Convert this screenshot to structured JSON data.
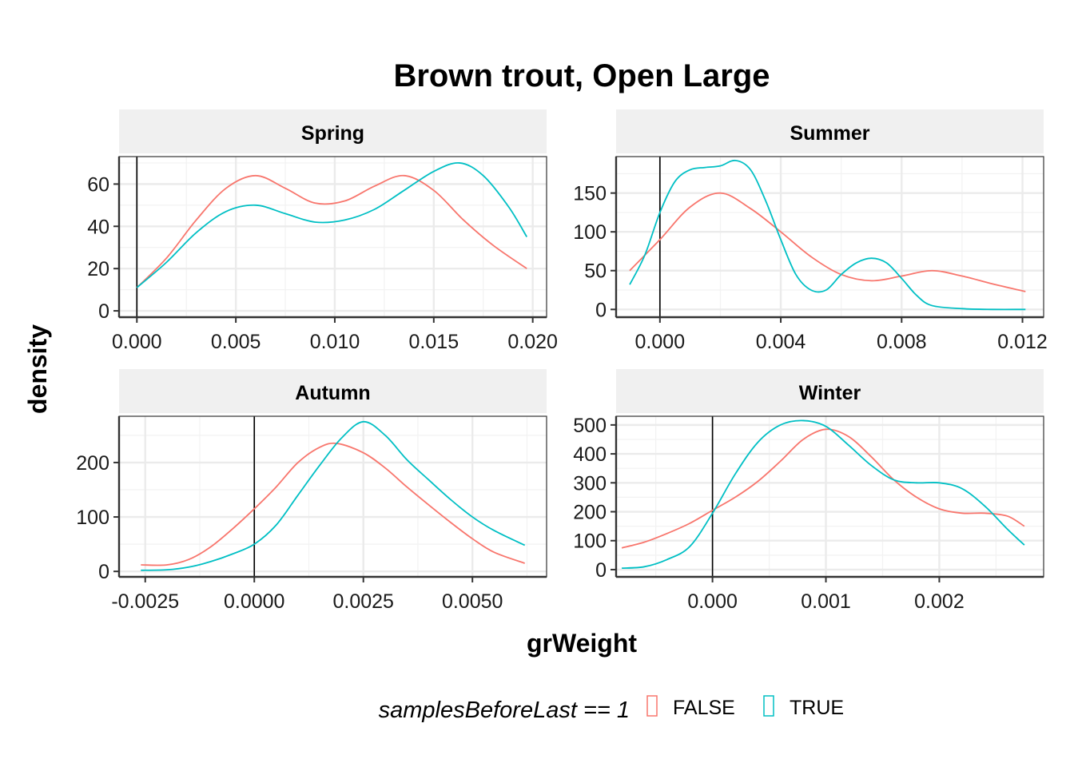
{
  "chart_data": {
    "type": "line",
    "title": "Brown trout, Open Large",
    "xlabel": "grWeight",
    "ylabel": "density",
    "legend": {
      "title": "samplesBeforeLast == 1",
      "position": "bottom",
      "entries": [
        {
          "label": "FALSE",
          "color": "#F8766D"
        },
        {
          "label": "TRUE",
          "color": "#00BFC4"
        }
      ]
    },
    "facets": [
      {
        "name": "Spring",
        "xlim": [
          -0.0009,
          0.0207
        ],
        "ylim": [
          -3,
          73
        ],
        "xticks": [
          0.0,
          0.005,
          0.01,
          0.015,
          0.02
        ],
        "xtick_labels": [
          "0.000",
          "0.005",
          "0.010",
          "0.015",
          "0.020"
        ],
        "yticks": [
          0,
          20,
          40,
          60
        ],
        "ytick_labels": [
          "0",
          "20",
          "40",
          "60"
        ],
        "vline": 0,
        "series": [
          {
            "name": "FALSE",
            "color": "#F8766D",
            "x": [
              0.0,
              0.0015,
              0.003,
              0.0045,
              0.006,
              0.0075,
              0.009,
              0.0105,
              0.012,
              0.0135,
              0.015,
              0.0165,
              0.018,
              0.0197
            ],
            "y": [
              11,
              25,
              43,
              58,
              64,
              58,
              51,
              52,
              59,
              64,
              57,
              43,
              31,
              20
            ]
          },
          {
            "name": "TRUE",
            "color": "#00BFC4",
            "x": [
              0.0,
              0.0015,
              0.003,
              0.0045,
              0.006,
              0.0075,
              0.009,
              0.0105,
              0.012,
              0.0135,
              0.015,
              0.0163,
              0.0175,
              0.0188,
              0.0197
            ],
            "y": [
              11,
              23,
              37,
              47,
              50,
              46,
              42,
              43,
              48,
              57,
              66,
              70,
              64,
              49,
              35
            ]
          }
        ]
      },
      {
        "name": "Summer",
        "xlim": [
          -0.00145,
          0.0127
        ],
        "ylim": [
          -10,
          197
        ],
        "xticks": [
          0.0,
          0.004,
          0.008,
          0.012
        ],
        "xtick_labels": [
          "0.000",
          "0.004",
          "0.008",
          "0.012"
        ],
        "yticks": [
          0,
          50,
          100,
          150
        ],
        "ytick_labels": [
          "0",
          "50",
          "100",
          "150"
        ],
        "vline": 0,
        "series": [
          {
            "name": "FALSE",
            "color": "#F8766D",
            "x": [
              -0.001,
              0.0,
              0.001,
              0.002,
              0.003,
              0.004,
              0.005,
              0.006,
              0.007,
              0.008,
              0.009,
              0.01,
              0.011,
              0.0121
            ],
            "y": [
              50,
              90,
              132,
              150,
              130,
              100,
              68,
              45,
              37,
              43,
              50,
              43,
              33,
              23
            ]
          },
          {
            "name": "TRUE",
            "color": "#00BFC4",
            "x": [
              -0.001,
              -0.0005,
              0.0,
              0.0005,
              0.001,
              0.0015,
              0.002,
              0.0025,
              0.003,
              0.0035,
              0.004,
              0.0045,
              0.005,
              0.0055,
              0.006,
              0.0065,
              0.007,
              0.0075,
              0.008,
              0.0085,
              0.009,
              0.01,
              0.011,
              0.0121
            ],
            "y": [
              32,
              70,
              125,
              165,
              180,
              183,
              185,
              192,
              180,
              140,
              90,
              45,
              25,
              25,
              45,
              60,
              66,
              60,
              40,
              18,
              5,
              1,
              0,
              0
            ]
          }
        ]
      },
      {
        "name": "Autumn",
        "xlim": [
          -0.0031,
          0.0067
        ],
        "ylim": [
          -10,
          285
        ],
        "xticks": [
          -0.0025,
          0.0,
          0.0025,
          0.005
        ],
        "xtick_labels": [
          "-0.0025",
          "0.0000",
          "0.0025",
          "0.0050"
        ],
        "yticks": [
          0,
          100,
          200
        ],
        "ytick_labels": [
          "0",
          "100",
          "200"
        ],
        "vline": 0,
        "series": [
          {
            "name": "FALSE",
            "color": "#F8766D",
            "x": [
              -0.0026,
              -0.002,
              -0.0015,
              -0.001,
              -0.0005,
              0.0,
              0.0005,
              0.001,
              0.0015,
              0.0019,
              0.0025,
              0.003,
              0.0035,
              0.004,
              0.0045,
              0.005,
              0.0055,
              0.0062
            ],
            "y": [
              12,
              12,
              22,
              45,
              78,
              115,
              155,
              200,
              228,
              235,
              218,
              190,
              155,
              122,
              90,
              60,
              35,
              15
            ]
          },
          {
            "name": "TRUE",
            "color": "#00BFC4",
            "x": [
              -0.0026,
              -0.002,
              -0.0015,
              -0.001,
              -0.0005,
              0.0,
              0.0005,
              0.001,
              0.0015,
              0.002,
              0.0025,
              0.003,
              0.0035,
              0.004,
              0.0045,
              0.005,
              0.0055,
              0.0062
            ],
            "y": [
              2,
              3,
              8,
              18,
              32,
              50,
              85,
              140,
              195,
              245,
              275,
              250,
              205,
              168,
              132,
              100,
              75,
              48
            ]
          }
        ]
      },
      {
        "name": "Winter",
        "xlim": [
          -0.00085,
          0.00292
        ],
        "ylim": [
          -25,
          530
        ],
        "xticks": [
          0.0,
          0.001,
          0.002
        ],
        "xtick_labels": [
          "0.000",
          "0.001",
          "0.002"
        ],
        "yticks": [
          0,
          100,
          200,
          300,
          400,
          500
        ],
        "ytick_labels": [
          "0",
          "100",
          "200",
          "300",
          "400",
          "500"
        ],
        "vline": 0,
        "series": [
          {
            "name": "FALSE",
            "color": "#F8766D",
            "x": [
              -0.0008,
              -0.0006,
              -0.0004,
              -0.0002,
              0.0,
              0.0002,
              0.0004,
              0.0006,
              0.0008,
              0.001,
              0.0012,
              0.0014,
              0.0016,
              0.0018,
              0.002,
              0.0022,
              0.0024,
              0.0026,
              0.00275
            ],
            "y": [
              75,
              95,
              125,
              160,
              205,
              250,
              305,
              375,
              450,
              485,
              460,
              390,
              310,
              250,
              210,
              195,
              195,
              185,
              150
            ]
          },
          {
            "name": "TRUE",
            "color": "#00BFC4",
            "x": [
              -0.0008,
              -0.0006,
              -0.0004,
              -0.0002,
              0.0,
              0.0002,
              0.0004,
              0.0006,
              0.0008,
              0.001,
              0.0012,
              0.0014,
              0.0016,
              0.0018,
              0.002,
              0.0022,
              0.0024,
              0.0026,
              0.00275
            ],
            "y": [
              5,
              10,
              35,
              80,
              195,
              330,
              440,
              500,
              515,
              495,
              430,
              360,
              310,
              300,
              300,
              280,
              220,
              140,
              85
            ]
          }
        ]
      }
    ]
  }
}
